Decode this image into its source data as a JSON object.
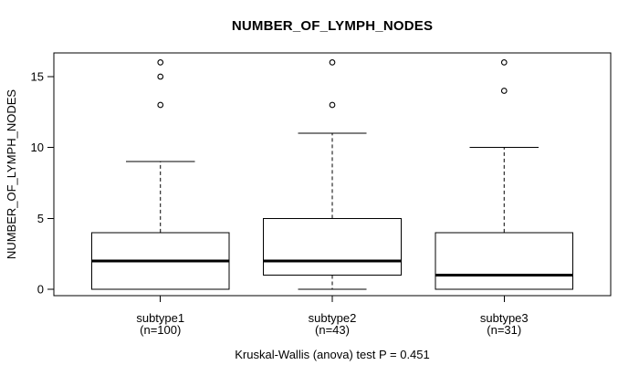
{
  "chart_data": {
    "type": "boxplot",
    "title": "NUMBER_OF_LYMPH_NODES",
    "ylabel": "NUMBER_OF_LYMPH_NODES",
    "xlabel": "",
    "caption": "Kruskal-Wallis (anova) test P = 0.451",
    "kruskal_wallis_p": 0.451,
    "yticks": [
      0,
      5,
      10,
      15
    ],
    "ylim": [
      -0.45,
      16.67
    ],
    "xlim": [
      0.38,
      3.62
    ],
    "grid": false,
    "legend": null,
    "groups": [
      {
        "x": 1,
        "label": "subtype1",
        "sublabel": "(n=100)",
        "n": 100,
        "whisker_low": 0,
        "q1": 0,
        "median": 2,
        "q3": 4,
        "whisker_high": 9,
        "outliers": [
          13,
          15,
          16
        ]
      },
      {
        "x": 2,
        "label": "subtype2",
        "sublabel": "(n=43)",
        "n": 43,
        "whisker_low": 0,
        "q1": 1,
        "median": 2,
        "q3": 5,
        "whisker_high": 11,
        "outliers": [
          13,
          16
        ]
      },
      {
        "x": 3,
        "label": "subtype3",
        "sublabel": "(n=31)",
        "n": 31,
        "whisker_low": 0,
        "q1": 0,
        "median": 1,
        "q3": 4,
        "whisker_high": 10,
        "outliers": [
          14,
          16
        ]
      }
    ],
    "colors": {
      "line": "#000000",
      "box_fill": "#ffffff",
      "background": "#ffffff",
      "text": "#000000"
    }
  }
}
